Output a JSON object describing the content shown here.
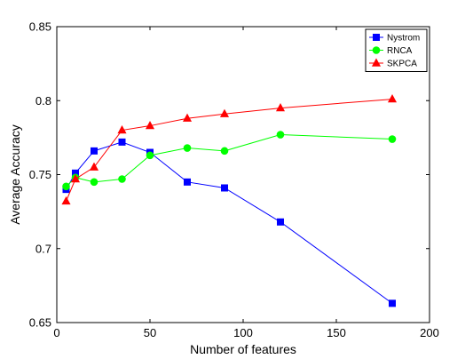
{
  "chart_data": {
    "type": "line",
    "title": "",
    "xlabel": "Number of features",
    "ylabel": "Average Accuracy",
    "xlim": [
      0,
      200
    ],
    "ylim": [
      0.65,
      0.85
    ],
    "xticks": [
      0,
      50,
      100,
      150,
      200
    ],
    "yticks": [
      0.65,
      0.7,
      0.75,
      0.8,
      0.85
    ],
    "xtick_labels": [
      "0",
      "50",
      "100",
      "150",
      "200"
    ],
    "ytick_labels": [
      "0.65",
      "0.7",
      "0.75",
      "0.8",
      "0.85"
    ],
    "grid": false,
    "legend_position": "top-right",
    "series": [
      {
        "name": "Nystrom",
        "color": "#0000ff",
        "marker": "square",
        "x": [
          5,
          10,
          20,
          35,
          50,
          70,
          90,
          120,
          180
        ],
        "y": [
          0.74,
          0.751,
          0.766,
          0.772,
          0.765,
          0.745,
          0.741,
          0.718,
          0.663
        ]
      },
      {
        "name": "RNCA",
        "color": "#00ff00",
        "marker": "circle",
        "x": [
          5,
          10,
          20,
          35,
          50,
          70,
          90,
          120,
          180
        ],
        "y": [
          0.742,
          0.748,
          0.745,
          0.747,
          0.763,
          0.768,
          0.766,
          0.777,
          0.774
        ]
      },
      {
        "name": "SKPCA",
        "color": "#ff0000",
        "marker": "triangle",
        "x": [
          5,
          10,
          20,
          35,
          50,
          70,
          90,
          120,
          180
        ],
        "y": [
          0.732,
          0.747,
          0.755,
          0.78,
          0.783,
          0.788,
          0.791,
          0.795,
          0.801
        ]
      }
    ]
  }
}
